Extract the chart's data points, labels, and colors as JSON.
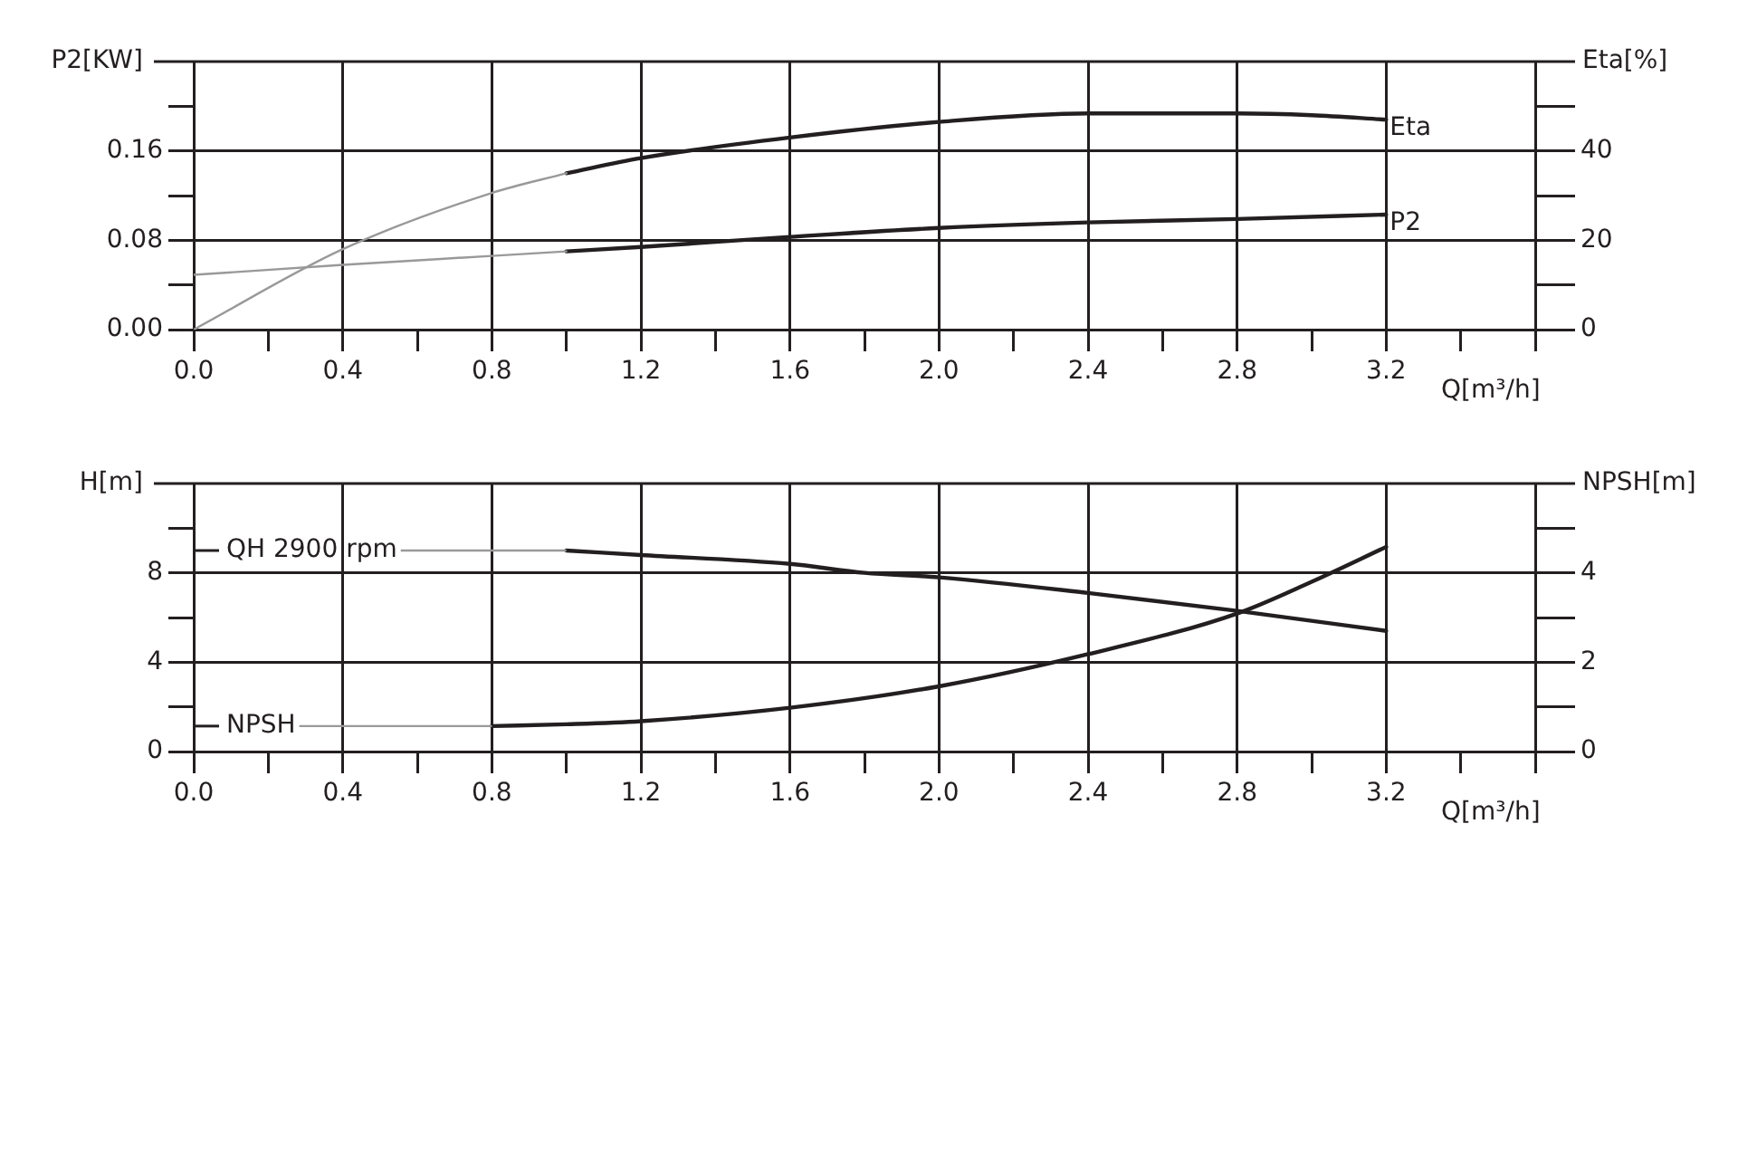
{
  "chart_data": [
    {
      "type": "line",
      "ylabel": "P2[KW]",
      "y2label": "Eta[%]",
      "xlabel": "Q[m³/h]",
      "xlim": [
        0,
        3.6
      ],
      "xticks": [
        {
          "value": 0,
          "label": "0.0"
        },
        {
          "value": 0.2,
          "label": null
        },
        {
          "value": 0.4,
          "label": "0.4"
        },
        {
          "value": 0.6,
          "label": null
        },
        {
          "value": 0.8,
          "label": "0.8"
        },
        {
          "value": 1.0,
          "label": null
        },
        {
          "value": 1.2,
          "label": "1.2"
        },
        {
          "value": 1.4,
          "label": null
        },
        {
          "value": 1.6,
          "label": "1.6"
        },
        {
          "value": 1.8,
          "label": null
        },
        {
          "value": 2.0,
          "label": "2.0"
        },
        {
          "value": 2.2,
          "label": null
        },
        {
          "value": 2.4,
          "label": "2.4"
        },
        {
          "value": 2.6,
          "label": null
        },
        {
          "value": 2.8,
          "label": "2.8"
        },
        {
          "value": 3.0,
          "label": null
        },
        {
          "value": 3.2,
          "label": "3.2"
        },
        {
          "value": 3.4,
          "label": null
        },
        {
          "value": 3.6,
          "label": null
        }
      ],
      "ylim": [
        0,
        0.24
      ],
      "yticks": [
        {
          "value": 0,
          "label": "0.00"
        },
        {
          "value": 0.04,
          "label": null
        },
        {
          "value": 0.08,
          "label": "0.08"
        },
        {
          "value": 0.12,
          "label": null
        },
        {
          "value": 0.16,
          "label": "0.16"
        },
        {
          "value": 0.2,
          "label": null
        }
      ],
      "y2lim": [
        0,
        60
      ],
      "y2ticks": [
        0,
        {
          "value": 10,
          "label": null
        },
        20,
        {
          "value": 30,
          "label": null
        },
        40,
        {
          "value": 50,
          "label": null
        }
      ],
      "grid": true,
      "legend": false,
      "marker": "none",
      "line_style": "solid",
      "series": [
        {
          "color": "#999999",
          "axis": "y2",
          "x": [
            0,
            0.4,
            0.8,
            1.0
          ],
          "values": [
            0,
            18,
            30.6,
            35
          ]
        },
        {
          "name": "Eta",
          "color": "#231f20",
          "axis": "y2",
          "x": [
            1.0,
            1.2,
            1.6,
            2.0,
            2.4,
            2.8,
            3.0,
            3.2
          ],
          "values": [
            35,
            38.4,
            43,
            46.5,
            48.4,
            48.4,
            48,
            47
          ]
        },
        {
          "color": "#999999",
          "x": [
            0,
            0.4,
            0.8,
            1.0
          ],
          "values": [
            0.049,
            0.058,
            0.066,
            0.07
          ]
        },
        {
          "name": "P2",
          "color": "#231f20",
          "x": [
            1.0,
            1.2,
            1.6,
            2.0,
            2.4,
            2.8,
            3.2
          ],
          "values": [
            0.07,
            0.074,
            0.083,
            0.091,
            0.096,
            0.099,
            0.103
          ]
        }
      ]
    },
    {
      "type": "line",
      "ylabel": "H[m]",
      "y2label": "NPSH[m]",
      "xlabel": "Q[m³/h]",
      "xlim": [
        0,
        3.6
      ],
      "xticks": [
        {
          "value": 0,
          "label": "0.0"
        },
        {
          "value": 0.2,
          "label": null
        },
        {
          "value": 0.4,
          "label": "0.4"
        },
        {
          "value": 0.6,
          "label": null
        },
        {
          "value": 0.8,
          "label": "0.8"
        },
        {
          "value": 1.0,
          "label": null
        },
        {
          "value": 1.2,
          "label": "1.2"
        },
        {
          "value": 1.4,
          "label": null
        },
        {
          "value": 1.6,
          "label": "1.6"
        },
        {
          "value": 1.8,
          "label": null
        },
        {
          "value": 2.0,
          "label": "2.0"
        },
        {
          "value": 2.2,
          "label": null
        },
        {
          "value": 2.4,
          "label": "2.4"
        },
        {
          "value": 2.6,
          "label": null
        },
        {
          "value": 2.8,
          "label": "2.8"
        },
        {
          "value": 3.0,
          "label": null
        },
        {
          "value": 3.2,
          "label": "3.2"
        },
        {
          "value": 3.4,
          "label": null
        },
        {
          "value": 3.6,
          "label": null
        }
      ],
      "ylim": [
        0,
        12
      ],
      "yticks": [
        0,
        {
          "value": 2,
          "label": null
        },
        4,
        {
          "value": 6,
          "label": null
        },
        8,
        {
          "value": 10,
          "label": null
        }
      ],
      "y2lim": [
        0,
        6
      ],
      "y2ticks": [
        0,
        {
          "value": 1,
          "label": null
        },
        2,
        {
          "value": 3,
          "label": null
        },
        4,
        {
          "value": 5,
          "label": null
        }
      ],
      "grid": true,
      "legend": "left",
      "marker": "none",
      "line_style": "solid",
      "series": [
        {
          "name": "QH 2900 rpm",
          "color": "#231f20",
          "x": [
            1.0,
            1.2,
            1.6,
            1.8,
            2.0,
            2.4,
            2.8,
            3.2
          ],
          "values": [
            9.0,
            8.8,
            8.4,
            8.0,
            7.8,
            7.1,
            6.3,
            5.4
          ]
        },
        {
          "name": "NPSH",
          "color": "#231f20",
          "axis": "y2",
          "x": [
            0.8,
            1.0,
            1.2,
            1.6,
            2.0,
            2.4,
            2.8,
            3.0,
            3.2
          ],
          "values": [
            0.57,
            0.61,
            0.68,
            0.98,
            1.46,
            2.18,
            3.09,
            3.8,
            4.58
          ]
        }
      ]
    }
  ]
}
